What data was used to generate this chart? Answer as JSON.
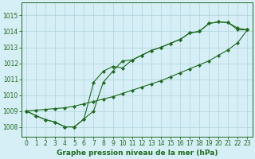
{
  "title": "Graphe pression niveau de la mer (hPa)",
  "background_color": "#d6eef5",
  "grid_color": "#aed4dd",
  "line_color": "#1e6b1e",
  "xlim": [
    -0.5,
    23.5
  ],
  "ylim": [
    1007.4,
    1015.8
  ],
  "xticks": [
    0,
    1,
    2,
    3,
    4,
    5,
    6,
    7,
    8,
    9,
    10,
    11,
    12,
    13,
    14,
    15,
    16,
    17,
    18,
    19,
    20,
    21,
    22,
    23
  ],
  "yticks": [
    1008,
    1009,
    1010,
    1011,
    1012,
    1013,
    1014,
    1015
  ],
  "series1": [
    1009.0,
    1008.7,
    1008.45,
    1008.3,
    1008.0,
    1008.0,
    1008.5,
    1009.0,
    1010.8,
    1011.5,
    1012.15,
    1012.2,
    1012.5,
    1012.8,
    1013.0,
    1013.25,
    1013.5,
    1013.9,
    1014.0,
    1014.5,
    1014.6,
    1014.55,
    1014.1,
    1014.1
  ],
  "series2": [
    1009.0,
    1008.7,
    1008.45,
    1008.3,
    1008.0,
    1008.0,
    1008.5,
    1010.8,
    1011.5,
    1011.8,
    1011.7,
    1012.2,
    1012.5,
    1012.8,
    1013.0,
    1013.25,
    1013.5,
    1013.9,
    1014.0,
    1014.5,
    1014.6,
    1014.55,
    1014.2,
    1014.1
  ],
  "series3": [
    1009.0,
    1009.05,
    1009.1,
    1009.15,
    1009.2,
    1009.3,
    1009.45,
    1009.6,
    1009.75,
    1009.9,
    1010.1,
    1010.3,
    1010.5,
    1010.7,
    1010.9,
    1011.15,
    1011.4,
    1011.65,
    1011.9,
    1012.15,
    1012.5,
    1012.85,
    1013.3,
    1014.1
  ],
  "title_fontsize": 6.5,
  "tick_fontsize": 5.5
}
